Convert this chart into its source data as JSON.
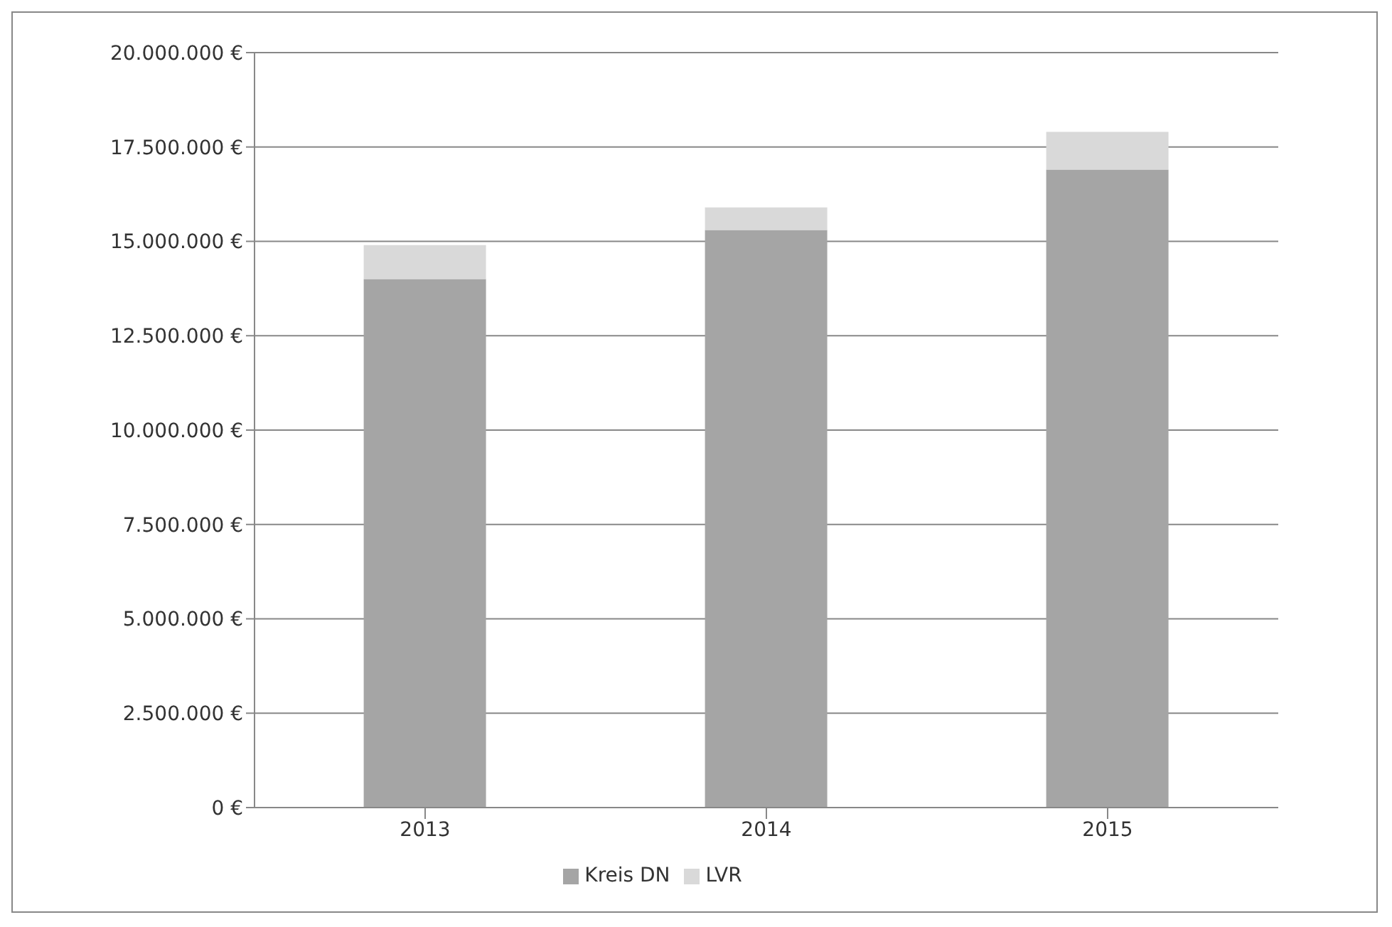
{
  "chart_data": {
    "type": "bar",
    "stacked": true,
    "categories": [
      "2013",
      "2014",
      "2015"
    ],
    "series": [
      {
        "name": "Kreis DN",
        "color": "#a5a5a5",
        "values": [
          14000000,
          15300000,
          16900000
        ]
      },
      {
        "name": "LVR",
        "color": "#d9d9d9",
        "values": [
          900000,
          600000,
          1000000
        ]
      }
    ],
    "ylim": [
      0,
      20000000
    ],
    "yticks": [
      {
        "value": 0,
        "label": "0 €"
      },
      {
        "value": 2500000,
        "label": "2.500.000 €"
      },
      {
        "value": 5000000,
        "label": "5.000.000 €"
      },
      {
        "value": 7500000,
        "label": "7.500.000 €"
      },
      {
        "value": 10000000,
        "label": "10.000.000 €"
      },
      {
        "value": 12500000,
        "label": "12.500.000 €"
      },
      {
        "value": 15000000,
        "label": "15.000.000 €"
      },
      {
        "value": 17500000,
        "label": "17.500.000 €"
      },
      {
        "value": 20000000,
        "label": "20.000.000 €"
      }
    ],
    "grid": "y",
    "legend": "bottom"
  }
}
